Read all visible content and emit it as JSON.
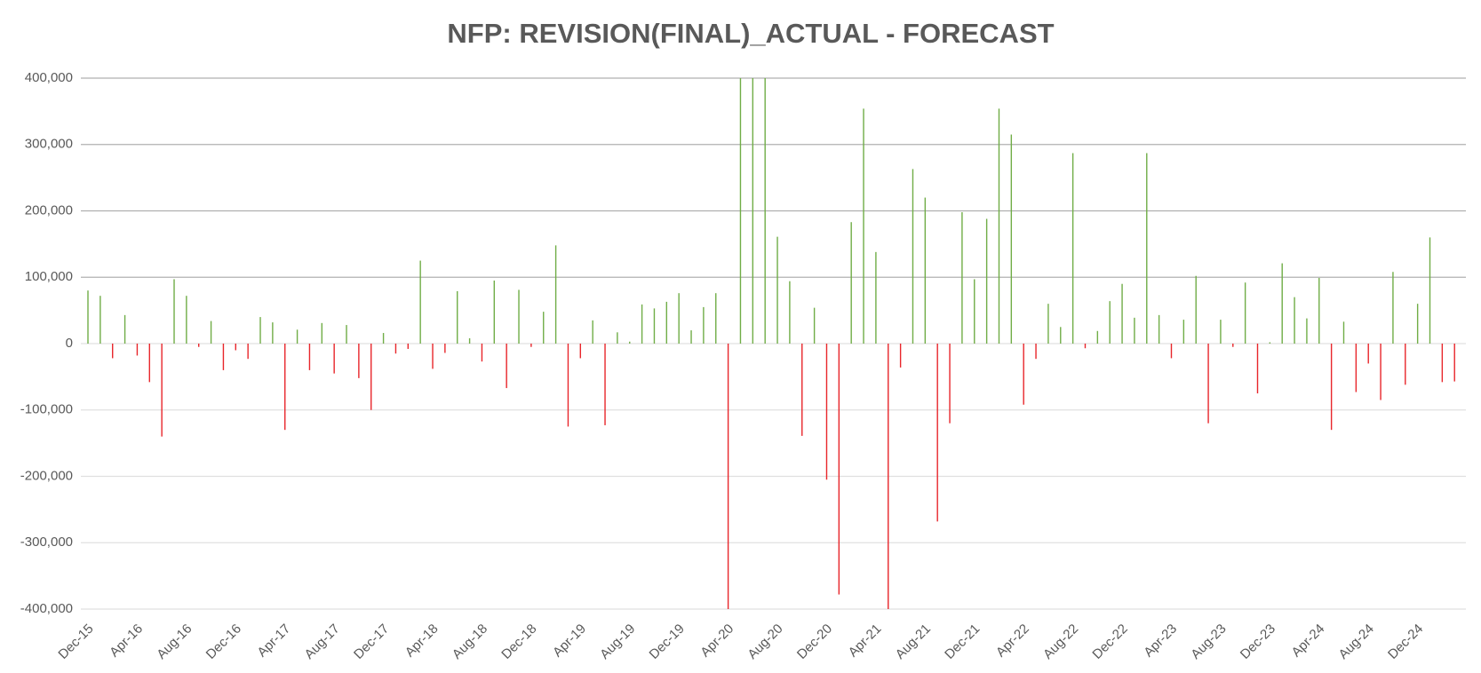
{
  "chart_data": {
    "type": "bar",
    "title": "NFP: REVISION(FINAL)_ACTUAL - FORECAST",
    "categories": [
      "Dec-15",
      null,
      null,
      null,
      "Apr-16",
      null,
      null,
      null,
      "Aug-16",
      null,
      null,
      null,
      "Dec-16",
      null,
      null,
      null,
      "Apr-17",
      null,
      null,
      null,
      "Aug-17",
      null,
      null,
      null,
      "Dec-17",
      null,
      null,
      null,
      "Apr-18",
      null,
      null,
      null,
      "Aug-18",
      null,
      null,
      null,
      "Dec-18",
      null,
      null,
      null,
      "Apr-19",
      null,
      null,
      null,
      "Aug-19",
      null,
      null,
      null,
      "Dec-19",
      null,
      null,
      null,
      "Apr-20",
      null,
      null,
      null,
      "Aug-20",
      null,
      null,
      null,
      "Dec-20",
      null,
      null,
      null,
      "Apr-21",
      null,
      null,
      null,
      "Aug-21",
      null,
      null,
      null,
      "Dec-21",
      null,
      null,
      null,
      "Apr-22",
      null,
      null,
      null,
      "Aug-22",
      null,
      null,
      null,
      "Dec-22",
      null,
      null,
      null,
      "Apr-23",
      null,
      null,
      null,
      "Aug-23",
      null,
      null,
      null,
      "Dec-23",
      null,
      null,
      null,
      "Apr-24",
      null,
      null,
      null,
      "Aug-24",
      null,
      null,
      null,
      "Dec-24",
      null,
      null,
      null
    ],
    "values": [
      80000,
      72000,
      -22000,
      43000,
      -18000,
      -58000,
      -140000,
      97000,
      72000,
      -5000,
      34000,
      -40000,
      -10000,
      -23000,
      40000,
      32000,
      -130000,
      21000,
      -40000,
      31000,
      -45000,
      28000,
      -52000,
      -100000,
      16000,
      -15000,
      -8000,
      125000,
      -38000,
      -14000,
      79000,
      8000,
      -27000,
      95000,
      -67000,
      81000,
      -5000,
      48000,
      148000,
      -125000,
      -22000,
      35000,
      -123000,
      17000,
      3000,
      59000,
      53000,
      63000,
      76000,
      20000,
      55000,
      76000,
      -400000,
      400000,
      400000,
      400000,
      161000,
      94000,
      -139000,
      54000,
      -205000,
      -378000,
      183000,
      354000,
      138000,
      -400000,
      -36000,
      263000,
      220000,
      -268000,
      -120000,
      198000,
      97000,
      188000,
      354000,
      315000,
      -92000,
      -23000,
      60000,
      25000,
      287000,
      -7000,
      19000,
      64000,
      90000,
      39000,
      287000,
      43000,
      -22000,
      36000,
      102000,
      -120000,
      36000,
      -5000,
      92000,
      -75000,
      2000,
      121000,
      70000,
      38000,
      99000,
      -130000,
      33000,
      -73000,
      -30000,
      -85000,
      108000,
      -62000,
      60000,
      160000,
      -58000,
      -57000
    ],
    "positive_color": "#70ad47",
    "negative_color": "#e8262b",
    "ylim": [
      -400000,
      400000
    ],
    "yticks": [
      {
        "value": -400000,
        "label": "-400,000"
      },
      {
        "value": -300000,
        "label": "-300,000"
      },
      {
        "value": -200000,
        "label": "-200,000"
      },
      {
        "value": -100000,
        "label": "-100,000"
      },
      0,
      {
        "value": 100000,
        "label": "100,000"
      },
      {
        "value": 200000,
        "label": "200,000"
      },
      {
        "value": 300000,
        "label": "300,000"
      },
      {
        "value": 400000,
        "label": "400,000"
      }
    ],
    "grid": true
  }
}
